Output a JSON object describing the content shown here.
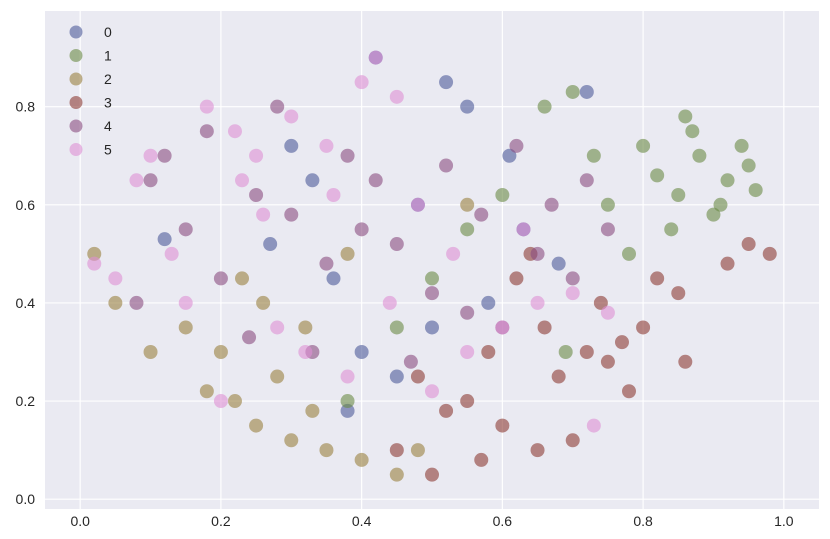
{
  "chart_data": {
    "type": "scatter",
    "title": "",
    "xlabel": "",
    "ylabel": "",
    "xlim": [
      -0.05,
      1.05
    ],
    "ylim": [
      -0.02,
      0.995
    ],
    "xticks": [
      0.0,
      0.2,
      0.4,
      0.6,
      0.8,
      1.0
    ],
    "xtick_labels": [
      "0.0",
      "0.2",
      "0.4",
      "0.6",
      "0.8",
      "1.0"
    ],
    "yticks": [
      0.0,
      0.2,
      0.4,
      0.6,
      0.8
    ],
    "ytick_labels": [
      "0.0",
      "0.2",
      "0.4",
      "0.6",
      "0.8"
    ],
    "grid": true,
    "legend_position": "top-left",
    "style": {
      "background": "#eaeaf2",
      "grid_color": "#ffffff",
      "marker_alpha": 0.6
    },
    "series": [
      {
        "name": "0",
        "color": "#4c5a99",
        "x": [
          0.3,
          0.42,
          0.55,
          0.63,
          0.36,
          0.48,
          0.4,
          0.58,
          0.68,
          0.27,
          0.45,
          0.52,
          0.33,
          0.61,
          0.38,
          0.5,
          0.12,
          0.72
        ],
        "y": [
          0.72,
          0.9,
          0.8,
          0.55,
          0.45,
          0.6,
          0.3,
          0.4,
          0.48,
          0.52,
          0.25,
          0.85,
          0.65,
          0.7,
          0.18,
          0.35,
          0.53,
          0.83
        ]
      },
      {
        "name": "1",
        "color": "#6b8a46",
        "x": [
          0.88,
          0.92,
          0.95,
          0.85,
          0.9,
          0.94,
          0.82,
          0.87,
          0.96,
          0.8,
          0.75,
          0.7,
          0.66,
          0.6,
          0.55,
          0.5,
          0.45,
          0.38,
          0.84,
          0.78,
          0.91,
          0.86,
          0.73,
          0.69
        ],
        "y": [
          0.7,
          0.65,
          0.68,
          0.62,
          0.58,
          0.72,
          0.66,
          0.75,
          0.63,
          0.72,
          0.6,
          0.83,
          0.8,
          0.62,
          0.55,
          0.45,
          0.35,
          0.2,
          0.55,
          0.5,
          0.6,
          0.78,
          0.7,
          0.3
        ]
      },
      {
        "name": "2",
        "color": "#9a8040",
        "x": [
          0.22,
          0.25,
          0.3,
          0.18,
          0.35,
          0.28,
          0.2,
          0.32,
          0.4,
          0.15,
          0.05,
          0.02,
          0.1,
          0.45,
          0.48,
          0.26,
          0.38,
          0.55,
          0.23,
          0.33
        ],
        "y": [
          0.2,
          0.15,
          0.12,
          0.22,
          0.1,
          0.25,
          0.3,
          0.35,
          0.08,
          0.35,
          0.4,
          0.5,
          0.3,
          0.05,
          0.1,
          0.4,
          0.5,
          0.6,
          0.45,
          0.18
        ]
      },
      {
        "name": "3",
        "color": "#8c3a33",
        "x": [
          0.55,
          0.6,
          0.65,
          0.7,
          0.68,
          0.72,
          0.75,
          0.78,
          0.8,
          0.85,
          0.5,
          0.45,
          0.58,
          0.62,
          0.74,
          0.95,
          0.98,
          0.92,
          0.82,
          0.66,
          0.52,
          0.48,
          0.64,
          0.77,
          0.86,
          0.57
        ],
        "y": [
          0.2,
          0.15,
          0.1,
          0.12,
          0.25,
          0.3,
          0.28,
          0.22,
          0.35,
          0.42,
          0.05,
          0.1,
          0.3,
          0.45,
          0.4,
          0.52,
          0.5,
          0.48,
          0.45,
          0.35,
          0.18,
          0.25,
          0.5,
          0.32,
          0.28,
          0.08
        ]
      },
      {
        "name": "4",
        "color": "#8a4c80",
        "x": [
          0.1,
          0.15,
          0.2,
          0.25,
          0.3,
          0.35,
          0.4,
          0.45,
          0.5,
          0.55,
          0.6,
          0.65,
          0.7,
          0.75,
          0.08,
          0.12,
          0.18,
          0.28,
          0.38,
          0.42,
          0.52,
          0.62,
          0.72,
          0.33,
          0.47,
          0.57,
          0.67,
          0.24
        ],
        "y": [
          0.65,
          0.55,
          0.45,
          0.62,
          0.58,
          0.48,
          0.55,
          0.52,
          0.42,
          0.38,
          0.35,
          0.5,
          0.45,
          0.55,
          0.4,
          0.7,
          0.75,
          0.8,
          0.7,
          0.65,
          0.68,
          0.72,
          0.65,
          0.3,
          0.28,
          0.58,
          0.6,
          0.33
        ]
      },
      {
        "name": "5",
        "color": "#dd8fd4",
        "x": [
          0.18,
          0.22,
          0.25,
          0.3,
          0.35,
          0.4,
          0.42,
          0.45,
          0.48,
          0.1,
          0.08,
          0.05,
          0.02,
          0.15,
          0.28,
          0.32,
          0.38,
          0.5,
          0.55,
          0.6,
          0.65,
          0.7,
          0.75,
          0.2,
          0.26,
          0.36,
          0.44,
          0.53,
          0.63,
          0.73,
          0.13,
          0.23
        ],
        "y": [
          0.8,
          0.75,
          0.7,
          0.78,
          0.72,
          0.85,
          0.9,
          0.82,
          0.6,
          0.7,
          0.65,
          0.45,
          0.48,
          0.4,
          0.35,
          0.3,
          0.25,
          0.22,
          0.3,
          0.35,
          0.4,
          0.42,
          0.38,
          0.2,
          0.58,
          0.62,
          0.4,
          0.5,
          0.55,
          0.15,
          0.5,
          0.65
        ]
      }
    ]
  }
}
